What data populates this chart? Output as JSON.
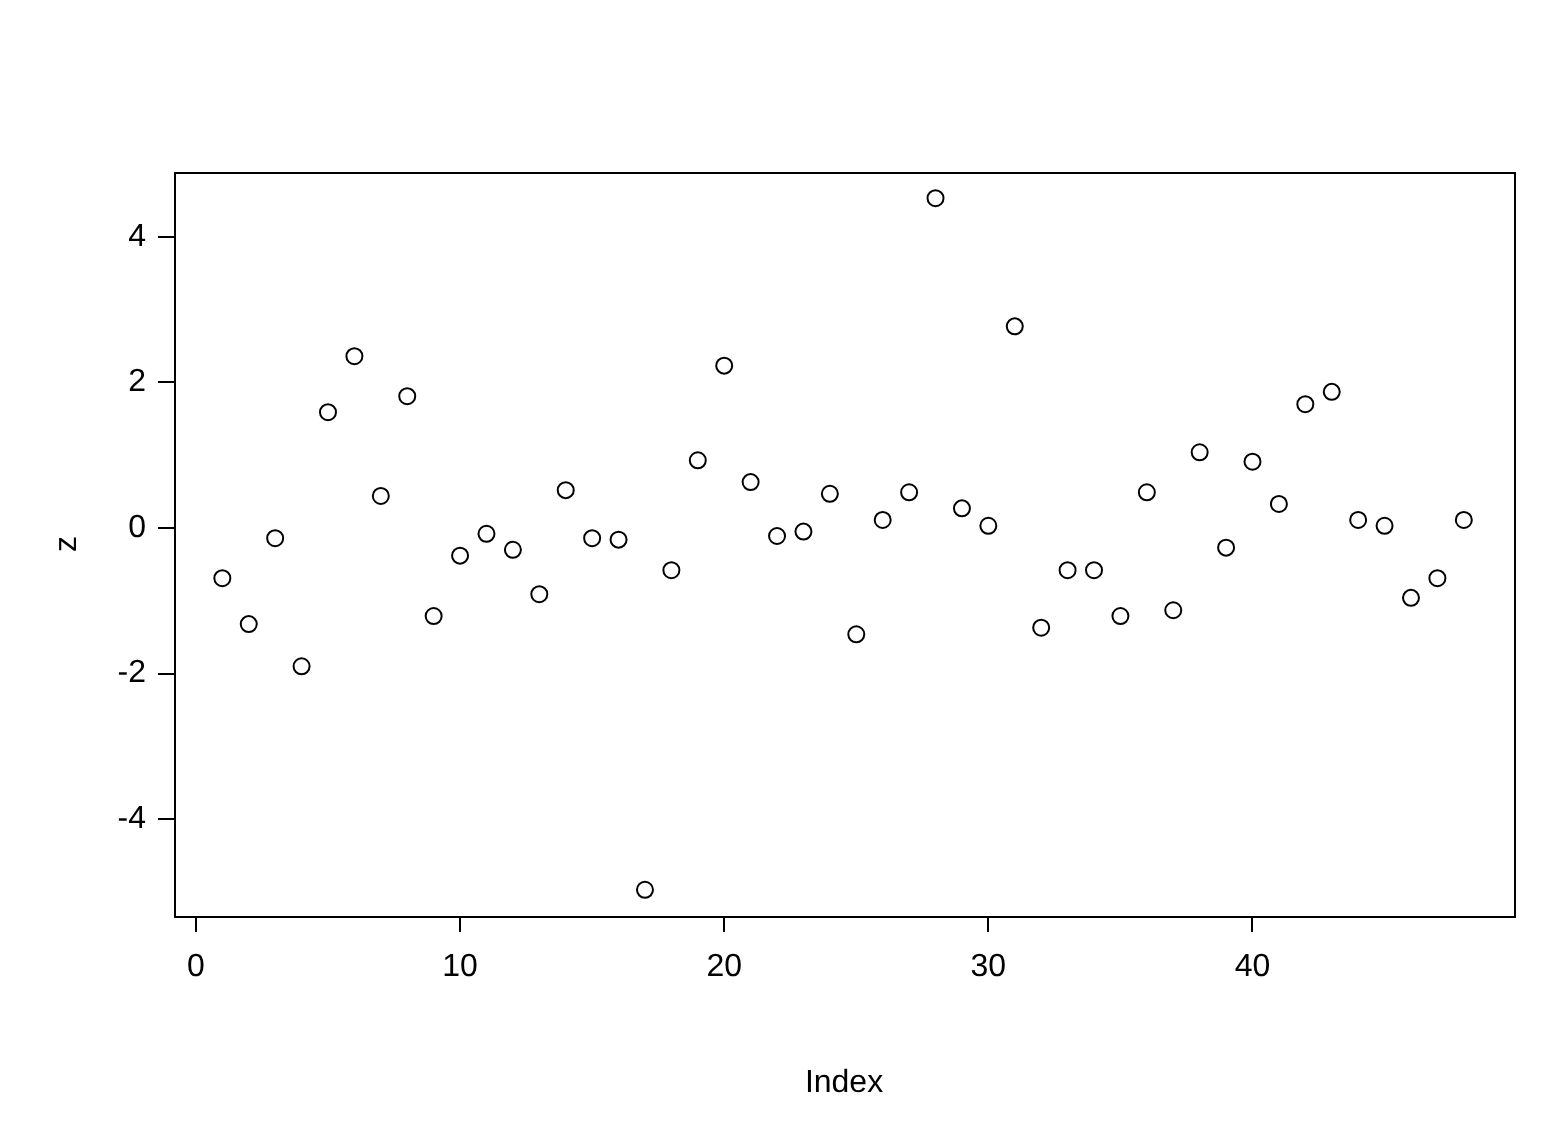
{
  "chart_data": {
    "type": "scatter",
    "xlabel": "Index",
    "ylabel": "z",
    "x": [
      1,
      2,
      3,
      4,
      5,
      6,
      7,
      8,
      9,
      10,
      11,
      12,
      13,
      14,
      15,
      16,
      17,
      18,
      19,
      20,
      21,
      22,
      23,
      24,
      25,
      26,
      27,
      28,
      29,
      30,
      31,
      32,
      33,
      34,
      35,
      36,
      37,
      38,
      39,
      40,
      41,
      42,
      43,
      44,
      45,
      46,
      47,
      48
    ],
    "series": [
      {
        "color": "#000000",
        "values": [
          -0.69,
          -1.32,
          -0.14,
          -1.9,
          1.59,
          2.36,
          0.44,
          1.81,
          -1.21,
          -0.38,
          -0.08,
          -0.3,
          -0.91,
          0.52,
          -0.14,
          -0.16,
          -4.97,
          -0.58,
          0.93,
          2.23,
          0.63,
          -0.11,
          -0.05,
          0.47,
          -1.46,
          0.11,
          0.49,
          4.53,
          0.27,
          0.03,
          2.77,
          -1.37,
          -0.58,
          -0.58,
          -1.21,
          0.49,
          -1.13,
          1.04,
          -0.27,
          0.91,
          0.33,
          1.7,
          1.87,
          0.11,
          0.03,
          -0.96,
          -0.69,
          0.11
        ]
      }
    ],
    "xlim": [
      -0.83,
      49.9
    ],
    "ylim": [
      -5.33,
      4.89
    ],
    "xticks": [
      0,
      10,
      20,
      30,
      40
    ],
    "yticks": [
      -4,
      -2,
      0,
      2,
      4
    ],
    "grid": false,
    "legend": false,
    "marker": "circle"
  }
}
